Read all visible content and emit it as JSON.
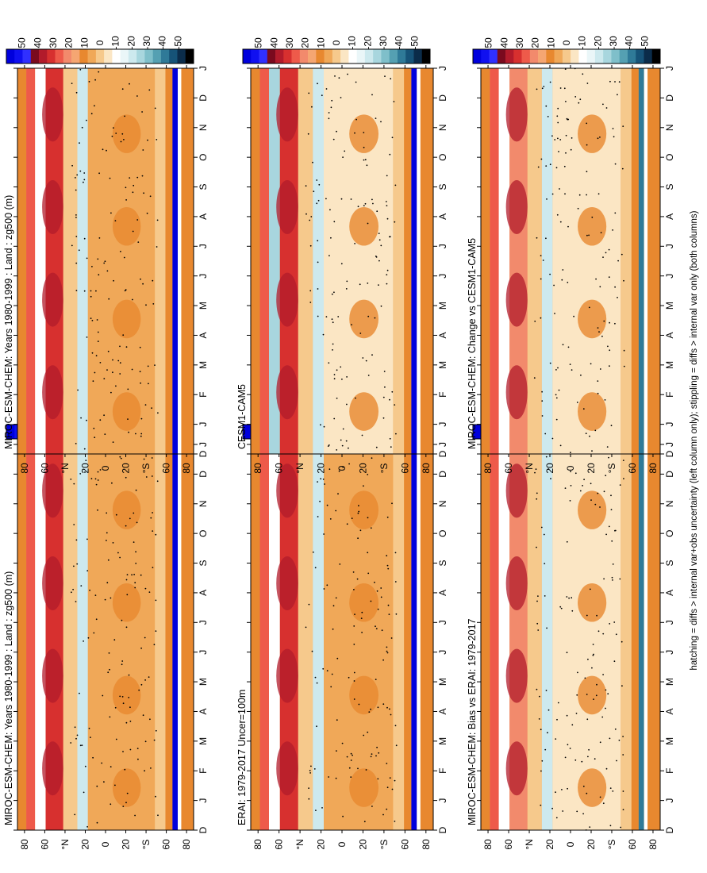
{
  "figure": {
    "footnote": "hatching = diffs > internal var+obs uncertainty (left column only); stippling = diffs > internal var only (both columns)"
  },
  "colors": {
    "scale": [
      "#0000dd",
      "#1010f0",
      "#3030ff",
      "#7a0a1e",
      "#b21b2b",
      "#d7302f",
      "#ee5a4a",
      "#f28a6c",
      "#f5a672",
      "#e8882f",
      "#f0a858",
      "#f6c98c",
      "#fbe6c4",
      "#ffffff",
      "#eaf6f8",
      "#cde9ee",
      "#a8d6de",
      "#7fbfca",
      "#55a0b2",
      "#2f7a98",
      "#165378",
      "#0b2c4a",
      "#000000"
    ],
    "axis": "#000000"
  },
  "chart_data": [
    {
      "type": "heatmap",
      "id": "p1",
      "title": "MIROC-ESM-CHEM: Years 1980-1999 : Land : zg500 (m)",
      "x_ticks": [
        "D",
        "J",
        "F",
        "M",
        "A",
        "M",
        "J",
        "J",
        "A",
        "S",
        "O",
        "N",
        "D",
        "J"
      ],
      "y_ticks": [
        "80",
        "60",
        "°N",
        "20",
        "0",
        "20",
        "°S",
        "60",
        "80"
      ],
      "ylim": [
        -90,
        90
      ],
      "colorbar": {
        "labels": [
          "50",
          "40",
          "30",
          "20",
          "10",
          "0",
          "-10",
          "-20",
          "-30",
          "-40",
          "-50"
        ],
        "range": [
          -55,
          55
        ]
      }
    },
    {
      "type": "heatmap",
      "id": "p2",
      "title": "MIROC-ESM-CHEM: Years 1980-1999 : Land : zg500 (m)",
      "x_ticks": [
        "D",
        "J",
        "F",
        "M",
        "A",
        "M",
        "J",
        "J",
        "A",
        "S",
        "O",
        "N",
        "D",
        "J"
      ],
      "y_ticks": [
        "80",
        "60",
        "°N",
        "20",
        "0",
        "20",
        "°S",
        "60",
        "80"
      ],
      "ylim": [
        -90,
        90
      ],
      "colorbar": {
        "labels": [
          "50",
          "40",
          "30",
          "20",
          "10",
          "0",
          "-10",
          "-20",
          "-30",
          "-40",
          "-50"
        ],
        "range": [
          -55,
          55
        ]
      }
    },
    {
      "type": "heatmap",
      "id": "p3",
      "title": "ERAI: 1979-2017 Uncer=100m",
      "x_ticks": [
        "D",
        "J",
        "F",
        "M",
        "A",
        "M",
        "J",
        "J",
        "A",
        "S",
        "O",
        "N",
        "D",
        "J"
      ],
      "y_ticks": [
        "80",
        "60",
        "°N",
        "20",
        "0",
        "20",
        "°S",
        "60",
        "80"
      ],
      "ylim": [
        -90,
        90
      ],
      "colorbar": {
        "labels": [
          "50",
          "40",
          "30",
          "20",
          "10",
          "0",
          "-10",
          "-20",
          "-30",
          "-40",
          "-50"
        ],
        "range": [
          -55,
          55
        ]
      }
    },
    {
      "type": "heatmap",
      "id": "p4",
      "title": "CESM1-CAM5",
      "x_ticks": [
        "D",
        "J",
        "F",
        "M",
        "A",
        "M",
        "J",
        "J",
        "A",
        "S",
        "O",
        "N",
        "D",
        "J"
      ],
      "y_ticks": [
        "80",
        "60",
        "°N",
        "20",
        "0",
        "20",
        "°S",
        "60",
        "80"
      ],
      "ylim": [
        -90,
        90
      ],
      "colorbar": {
        "labels": [
          "50",
          "40",
          "30",
          "20",
          "10",
          "0",
          "-10",
          "-20",
          "-30",
          "-40",
          "-50"
        ],
        "range": [
          -55,
          55
        ]
      }
    },
    {
      "type": "heatmap",
      "id": "p5",
      "title": "MIROC-ESM-CHEM: Bias vs ERAI: 1979-2017",
      "x_ticks": [
        "D",
        "J",
        "F",
        "M",
        "A",
        "M",
        "J",
        "J",
        "A",
        "S",
        "O",
        "N",
        "D",
        "J"
      ],
      "y_ticks": [
        "80",
        "60",
        "°N",
        "20",
        "0",
        "20",
        "°S",
        "60",
        "80"
      ],
      "ylim": [
        -90,
        90
      ],
      "colorbar": {
        "labels": [
          "50",
          "40",
          "30",
          "20",
          "10",
          "0",
          "-10",
          "-20",
          "-30",
          "-40",
          "-50"
        ],
        "range": [
          -55,
          55
        ]
      }
    },
    {
      "type": "heatmap",
      "id": "p6",
      "title": "MIROC-ESM-CHEM: Change vs CESM1-CAM5",
      "x_ticks": [
        "D",
        "J",
        "F",
        "M",
        "A",
        "M",
        "J",
        "J",
        "A",
        "S",
        "O",
        "N",
        "D",
        "J"
      ],
      "y_ticks": [
        "80",
        "60",
        "°N",
        "20",
        "0",
        "20",
        "°S",
        "60",
        "80"
      ],
      "ylim": [
        -90,
        90
      ],
      "colorbar": {
        "labels": [
          "50",
          "40",
          "30",
          "20",
          "10",
          "0",
          "-10",
          "-20",
          "-30",
          "-40",
          "-50"
        ],
        "range": [
          -55,
          55
        ]
      }
    }
  ]
}
